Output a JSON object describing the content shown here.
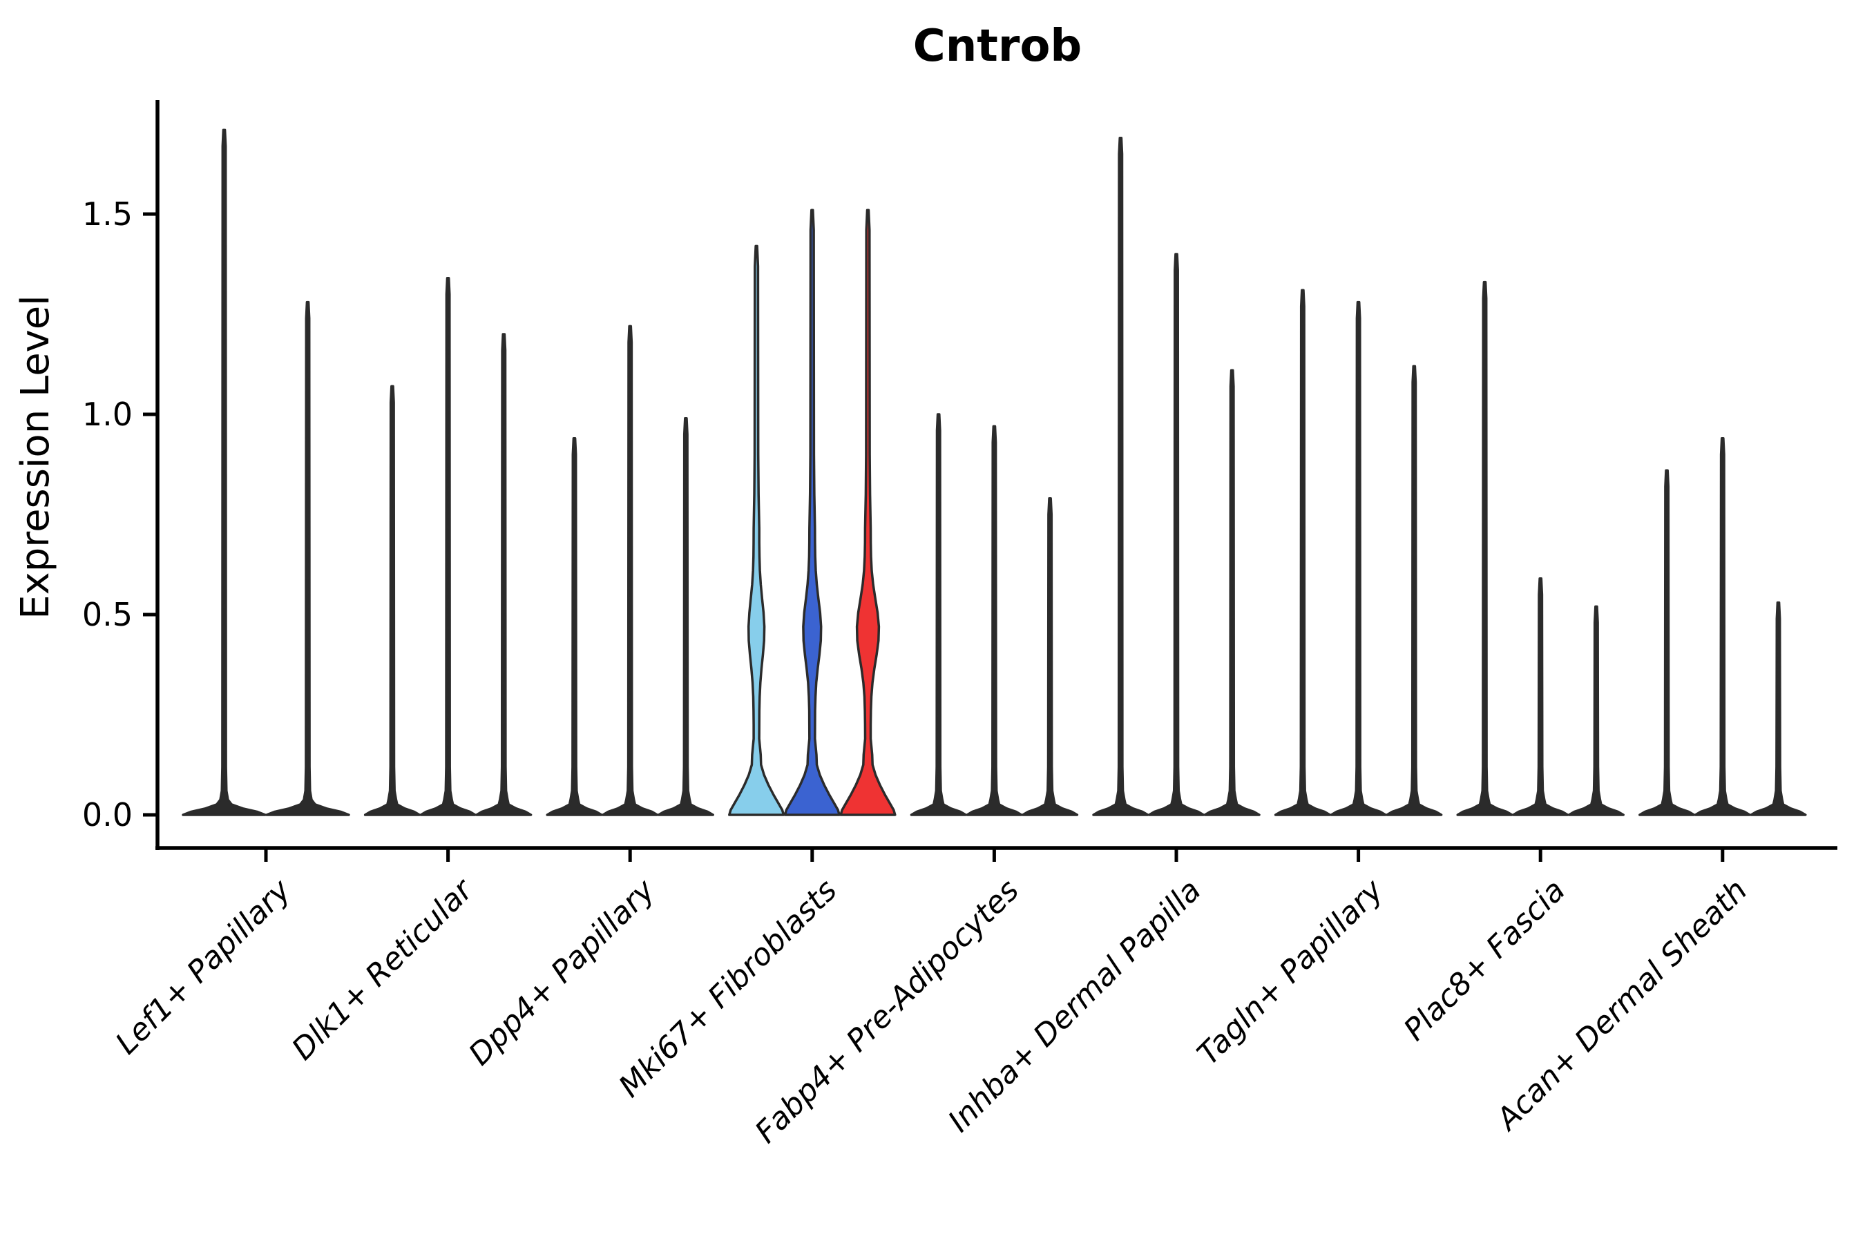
{
  "title": "Cntrob",
  "chart_data": {
    "type": "violin",
    "title": "Cntrob",
    "xlabel": "",
    "ylabel": "Expression Level",
    "ytick_values": [
      0.0,
      0.5,
      1.0,
      1.5
    ],
    "ytick_labels": [
      "0.0",
      "0.5",
      "1.0",
      "1.5"
    ],
    "ylim": [
      -0.08,
      1.78
    ],
    "grid": false,
    "legend_position": "none",
    "outline_color": "#2B2B2B",
    "highlight_colors": {
      "light_blue": "#87CEEB",
      "blue": "#3B63D1",
      "red": "#EF3333"
    },
    "categories": [
      "Lef1+ Papillary",
      "Dlk1+ Reticular",
      "Dpp4+ Papillary",
      "Mki67+ Fibroblasts",
      "Fabp4+ Pre-Adipocytes",
      "Inhba+ Dermal Papilla",
      "Tagln+ Papillary",
      "Plac8+ Fascia",
      "Acan+ Dermal Sheath"
    ],
    "groups": [
      {
        "label": "Lef1+ Papillary",
        "violins": [
          {
            "max": 1.71
          },
          {
            "max": 1.28
          }
        ]
      },
      {
        "label": "Dlk1+ Reticular",
        "violins": [
          {
            "max": 1.07
          },
          {
            "max": 1.34
          },
          {
            "max": 1.2
          }
        ]
      },
      {
        "label": "Dpp4+ Papillary",
        "violins": [
          {
            "max": 0.94
          },
          {
            "max": 1.22
          },
          {
            "max": 0.99
          }
        ]
      },
      {
        "label": "Mki67+ Fibroblasts",
        "violins": [
          {
            "max": 1.42,
            "fill": "#87CEEB",
            "bulge": 7.5
          },
          {
            "max": 1.51,
            "fill": "#3B63D1",
            "bulge": 9
          },
          {
            "max": 1.51,
            "fill": "#EF3333",
            "bulge": 12
          }
        ]
      },
      {
        "label": "Fabp4+ Pre-Adipocytes",
        "violins": [
          {
            "max": 1.0
          },
          {
            "max": 0.97
          },
          {
            "max": 0.79
          }
        ]
      },
      {
        "label": "Inhba+ Dermal Papilla",
        "violins": [
          {
            "max": 1.69
          },
          {
            "max": 1.4
          },
          {
            "max": 1.11
          }
        ]
      },
      {
        "label": "Tagln+ Papillary",
        "violins": [
          {
            "max": 1.31
          },
          {
            "max": 1.28
          },
          {
            "max": 1.12
          }
        ]
      },
      {
        "label": "Plac8+ Fascia",
        "violins": [
          {
            "max": 1.33
          },
          {
            "max": 0.59
          },
          {
            "max": 0.52
          }
        ]
      },
      {
        "label": "Acan+ Dermal Sheath",
        "violins": [
          {
            "max": 0.86
          },
          {
            "max": 0.94
          },
          {
            "max": 0.53
          }
        ]
      }
    ]
  }
}
